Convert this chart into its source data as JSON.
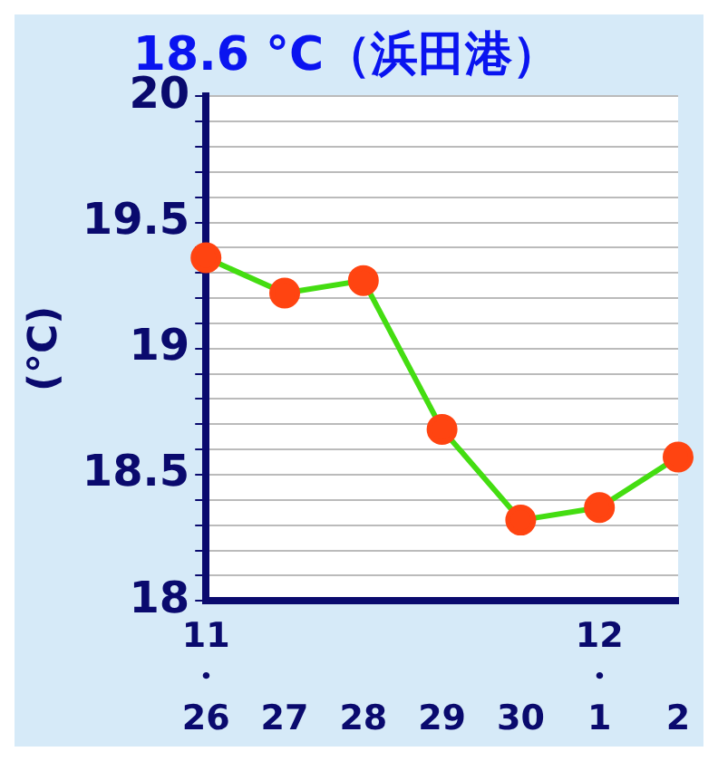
{
  "chart_data": {
    "type": "line",
    "title": "18.6 °C（浜田港）",
    "ylabel": "(°C)",
    "categories": [
      "11\n・\n26",
      "27",
      "28",
      "29",
      "30",
      "12\n・\n1",
      "2"
    ],
    "series": [
      {
        "color": "#44dd11",
        "colors": [
          "#ff4411",
          "#ff4411",
          "#ff4411",
          "#ff4411",
          "#ff4411",
          "#ff4411",
          "#ff4411"
        ],
        "values": [
          19.36,
          19.22,
          19.27,
          18.68,
          18.32,
          18.37,
          18.57
        ]
      }
    ],
    "ylim": [
      18,
      20
    ],
    "yticks": [
      18,
      {
        "value": 18.1,
        "label": null
      },
      {
        "value": 18.2,
        "label": null
      },
      {
        "value": 18.3,
        "label": null
      },
      {
        "value": 18.4,
        "label": null
      },
      18.5,
      {
        "value": 18.6,
        "label": null
      },
      {
        "value": 18.7,
        "label": null
      },
      {
        "value": 18.8,
        "label": null
      },
      {
        "value": 18.9,
        "label": null
      },
      19,
      {
        "value": 19.1,
        "label": null
      },
      {
        "value": 19.2,
        "label": null
      },
      {
        "value": 19.3,
        "label": null
      },
      {
        "value": 19.4,
        "label": null
      },
      19.5,
      {
        "value": 19.6,
        "label": null
      },
      {
        "value": 19.7,
        "label": null
      },
      {
        "value": 19.8,
        "label": null
      },
      {
        "value": 19.9,
        "label": null
      },
      20
    ],
    "marker": "circle",
    "grid": "y",
    "legend": false
  }
}
